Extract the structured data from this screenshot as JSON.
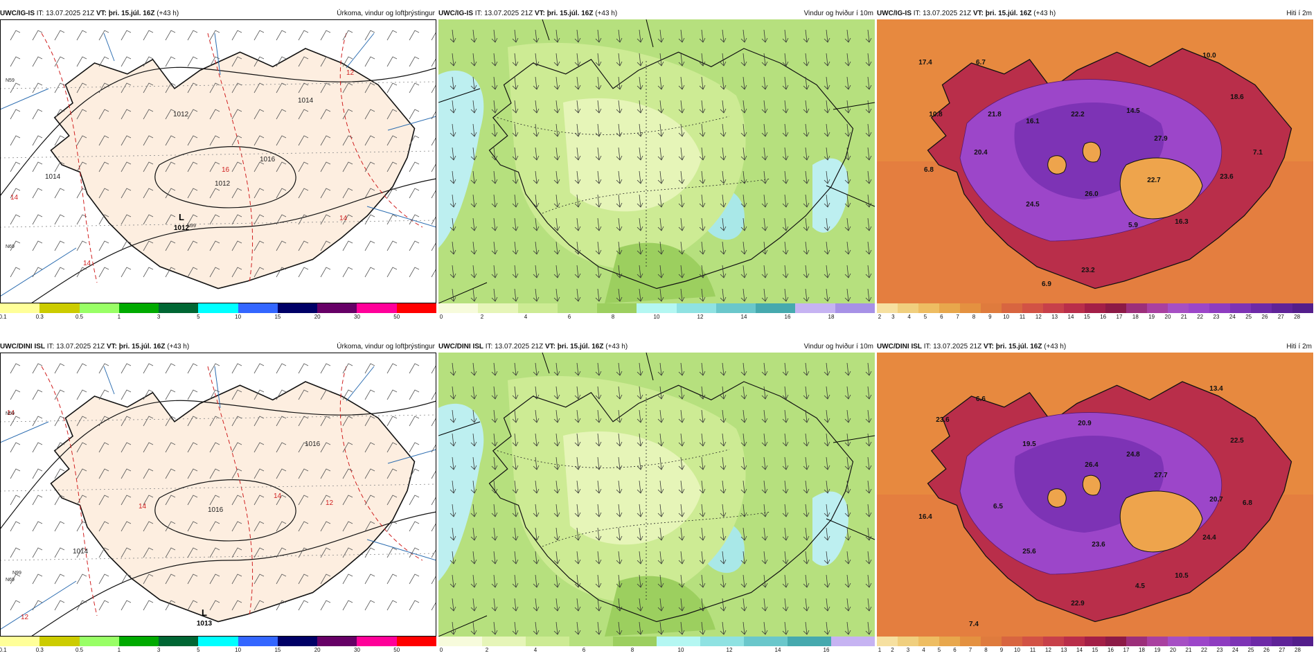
{
  "rows": [
    {
      "model": "UWC/IG-IS",
      "it": "IT: 13.07.2025 21Z",
      "vt_label": "VT:",
      "vt": "þri. 15.júl. 16Z",
      "lead": "(+43 h)",
      "panels": [
        {
          "product": "Úrkoma, vindur og loftþrýstingur",
          "colorbar": {
            "colors": [
              "#ffff99",
              "#cccc00",
              "#99ff66",
              "#00aa00",
              "#006633",
              "#00ffff",
              "#3366ff",
              "#000066",
              "#660066",
              "#ff0099",
              "#ff0000"
            ],
            "ticks": [
              "0.1",
              "0.3",
              "0.5",
              "1",
              "3",
              "5",
              "10",
              "15",
              "20",
              "30",
              "50"
            ]
          },
          "labels": [
            "1012",
            "1014",
            "1012",
            "1016",
            "1014",
            "14",
            "16",
            "14",
            "12",
            "14",
            "N99",
            "N59",
            "N69"
          ],
          "low": {
            "symbol": "L",
            "value": "1012"
          }
        },
        {
          "product": "Vindur og hviður í 10m",
          "colorbar": {
            "colors": [
              "#f7fbdc",
              "#e6f5b8",
              "#cdeb94",
              "#b6e07e",
              "#9ccf5f",
              "#b4f7f2",
              "#8fe2e2",
              "#6ac7cb",
              "#46a9ae",
              "#c6b3f2",
              "#a791e6"
            ],
            "ticks": [
              "0",
              "2",
              "4",
              "6",
              "8",
              "10",
              "12",
              "14",
              "16",
              "18"
            ]
          }
        },
        {
          "product": "Hiti í 2m",
          "colorbar": {
            "colors": [
              "#f6e0a0",
              "#f0cf7e",
              "#eebd62",
              "#e8a74c",
              "#e49140",
              "#df7b3d",
              "#d86540",
              "#d25245",
              "#c7404a",
              "#b92e4a",
              "#a31f47",
              "#8c1a46",
              "#9c2f7a",
              "#a940a0",
              "#a64fc4",
              "#9c46c9",
              "#8e3cc0",
              "#7d33b5",
              "#6d2aa7",
              "#5f2398",
              "#531e8b"
            ],
            "ticks": [
              "2",
              "3",
              "4",
              "5",
              "6",
              "7",
              "8",
              "9",
              "10",
              "11",
              "12",
              "13",
              "14",
              "15",
              "16",
              "17",
              "18",
              "19",
              "20",
              "21",
              "22",
              "23",
              "24",
              "25",
              "26",
              "27",
              "28"
            ]
          },
          "labels": [
            "17.4",
            "6.7",
            "10.0",
            "10.8",
            "21.8",
            "16.1",
            "22.2",
            "14.5",
            "18.6",
            "27.9",
            "7.1",
            "20.4",
            "6.8",
            "24.5",
            "26.0",
            "22.7",
            "23.6",
            "5.9",
            "16.3",
            "6.9",
            "23.2"
          ]
        }
      ]
    },
    {
      "model": "UWC/DINI ISL",
      "it": "IT: 13.07.2025 21Z",
      "vt_label": "VT:",
      "vt": "þri. 15.júl. 16Z",
      "lead": "(+43 h)",
      "panels": [
        {
          "product": "Úrkoma, vindur og loftþrýstingur",
          "colorbar": {
            "colors": [
              "#ffff99",
              "#cccc00",
              "#99ff66",
              "#00aa00",
              "#006633",
              "#00ffff",
              "#3366ff",
              "#000066",
              "#660066",
              "#ff0099",
              "#ff0000"
            ],
            "ticks": [
              "0.1",
              "0.3",
              "0.5",
              "1",
              "3",
              "5",
              "10",
              "15",
              "20",
              "30",
              "50"
            ]
          },
          "labels": [
            "1016",
            "1014",
            "1016",
            "14",
            "14",
            "12",
            "12",
            "14",
            "N99",
            "N59",
            "N69"
          ],
          "low": {
            "symbol": "L",
            "value": "1013"
          }
        },
        {
          "product": "Vindur og hviður í 10m",
          "colorbar": {
            "colors": [
              "#f7fbdc",
              "#e6f5b8",
              "#cdeb94",
              "#b6e07e",
              "#9ccf5f",
              "#b4f7f2",
              "#8fe2e2",
              "#6ac7cb",
              "#46a9ae",
              "#c6b3f2"
            ],
            "ticks": [
              "0",
              "2",
              "4",
              "6",
              "8",
              "10",
              "12",
              "14",
              "16"
            ]
          }
        },
        {
          "product": "Hiti í 2m",
          "colorbar": {
            "colors": [
              "#f6e0a0",
              "#f0cf7e",
              "#eebd62",
              "#e8a74c",
              "#e49140",
              "#df7b3d",
              "#d86540",
              "#d25245",
              "#c7404a",
              "#b92e4a",
              "#a31f47",
              "#8c1a46",
              "#9c2f7a",
              "#a940a0",
              "#a64fc4",
              "#9c46c9",
              "#8e3cc0",
              "#7d33b5",
              "#6d2aa7",
              "#5f2398",
              "#531e8b"
            ],
            "ticks": [
              "1",
              "2",
              "3",
              "4",
              "5",
              "6",
              "7",
              "8",
              "9",
              "10",
              "11",
              "12",
              "13",
              "14",
              "15",
              "16",
              "17",
              "18",
              "19",
              "20",
              "21",
              "22",
              "23",
              "24",
              "25",
              "26",
              "27",
              "28"
            ]
          },
          "labels": [
            "13.4",
            "6.6",
            "23.6",
            "20.9",
            "22.5",
            "19.5",
            "26.4",
            "24.8",
            "27.7",
            "20.7",
            "6.8",
            "6.5",
            "16.4",
            "25.6",
            "23.6",
            "24.4",
            "4.5",
            "10.5",
            "22.9",
            "7.4"
          ]
        }
      ]
    }
  ]
}
